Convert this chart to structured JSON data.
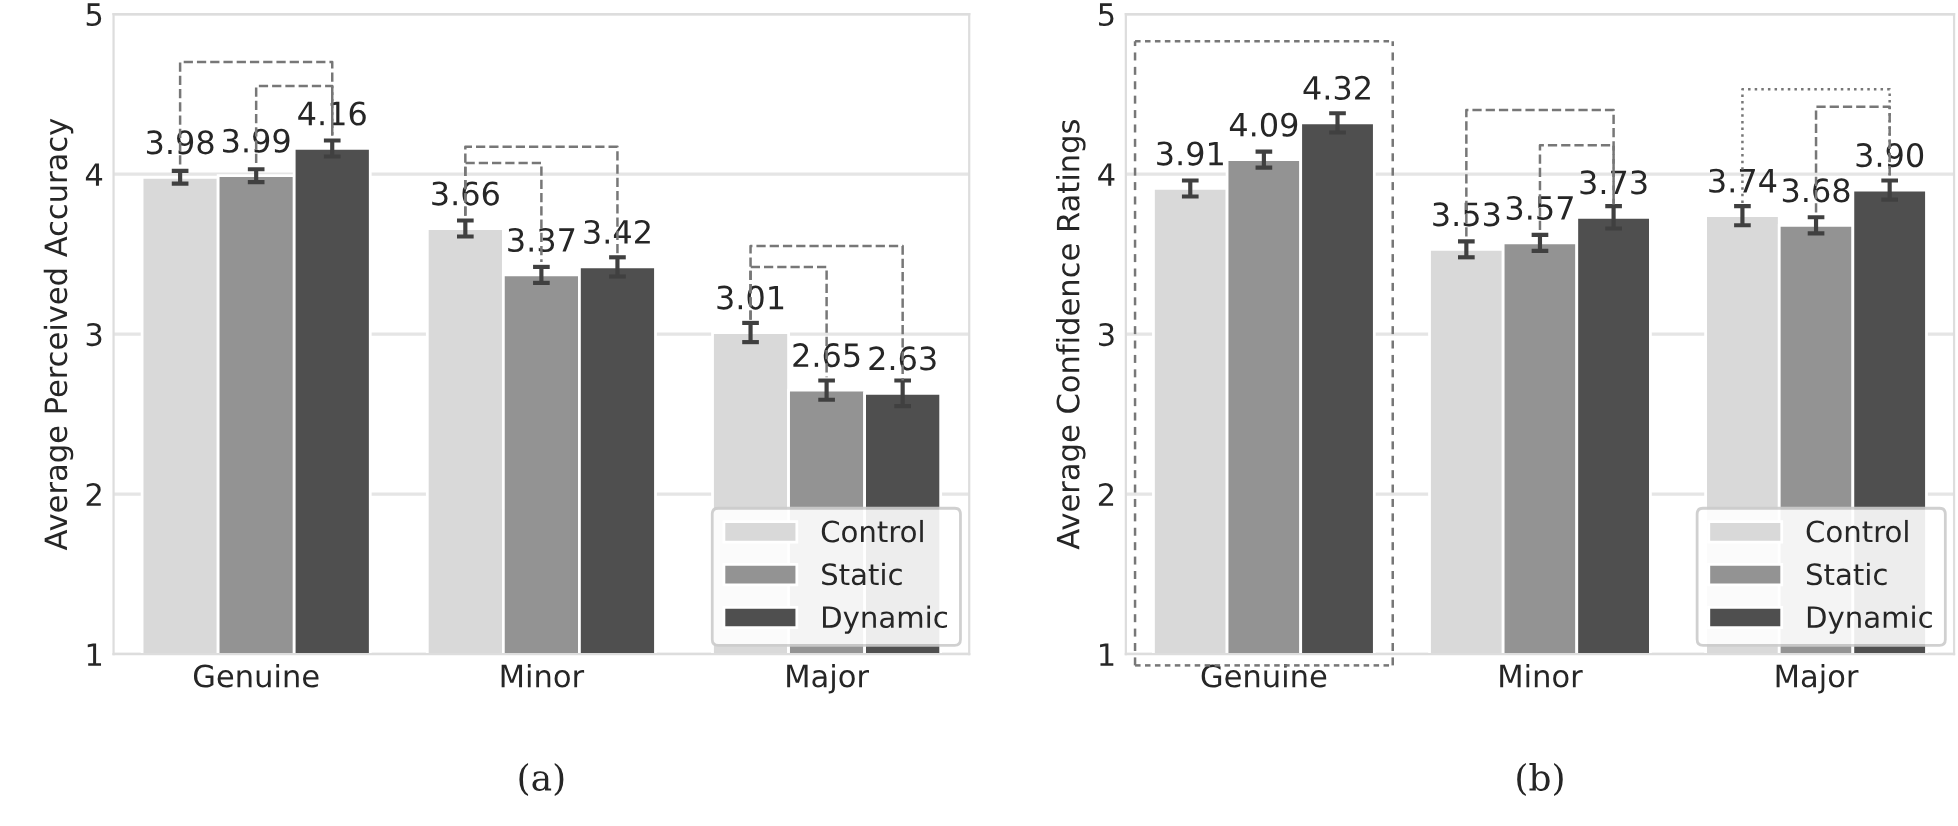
{
  "chart_data": [
    {
      "type": "bar",
      "categories": [
        "Genuine",
        "Minor",
        "Major"
      ],
      "ylabel": "Average Perceived Accuracy",
      "ylim": [
        1,
        5
      ],
      "yticks": [
        1,
        2,
        3,
        4,
        5
      ],
      "grid": "y",
      "legend": "bottom right",
      "annotations": [
        "(a)"
      ],
      "series": [
        {
          "name": "Control",
          "color": "#d9d9d9",
          "values": [
            3.98,
            3.66,
            3.01
          ],
          "value_labels": [
            "3.98",
            "3.66",
            "3.01"
          ],
          "errors": [
            0.04,
            0.05,
            0.06
          ]
        },
        {
          "name": "Static",
          "color": "#939393",
          "values": [
            3.99,
            3.37,
            2.65
          ],
          "value_labels": [
            "3.99",
            "3.37",
            "2.65"
          ],
          "errors": [
            0.04,
            0.05,
            0.06
          ]
        },
        {
          "name": "Dynamic",
          "color": "#4f4f4f",
          "values": [
            4.16,
            3.42,
            2.63
          ],
          "value_labels": [
            "4.16",
            "3.42",
            "2.63"
          ],
          "errors": [
            0.05,
            0.06,
            0.08
          ]
        }
      ]
    },
    {
      "type": "bar",
      "categories": [
        "Genuine",
        "Minor",
        "Major"
      ],
      "ylabel": "Average Confidence Ratings",
      "ylim": [
        1,
        5
      ],
      "yticks": [
        1,
        2,
        3,
        4,
        5
      ],
      "grid": "y",
      "legend": "bottom right",
      "annotations": [
        "(b)"
      ],
      "series": [
        {
          "name": "Control",
          "color": "#d9d9d9",
          "values": [
            3.91,
            3.53,
            3.74
          ],
          "value_labels": [
            "3.91",
            "3.53",
            "3.74"
          ],
          "errors": [
            0.05,
            0.05,
            0.06
          ]
        },
        {
          "name": "Static",
          "color": "#939393",
          "values": [
            4.09,
            3.57,
            3.68
          ],
          "value_labels": [
            "4.09",
            "3.57",
            "3.68"
          ],
          "errors": [
            0.05,
            0.05,
            0.05
          ]
        },
        {
          "name": "Dynamic",
          "color": "#4f4f4f",
          "values": [
            4.32,
            3.73,
            3.9
          ],
          "value_labels": [
            "4.32",
            "3.73",
            "3.90"
          ],
          "errors": [
            0.06,
            0.07,
            0.06
          ]
        }
      ]
    }
  ]
}
